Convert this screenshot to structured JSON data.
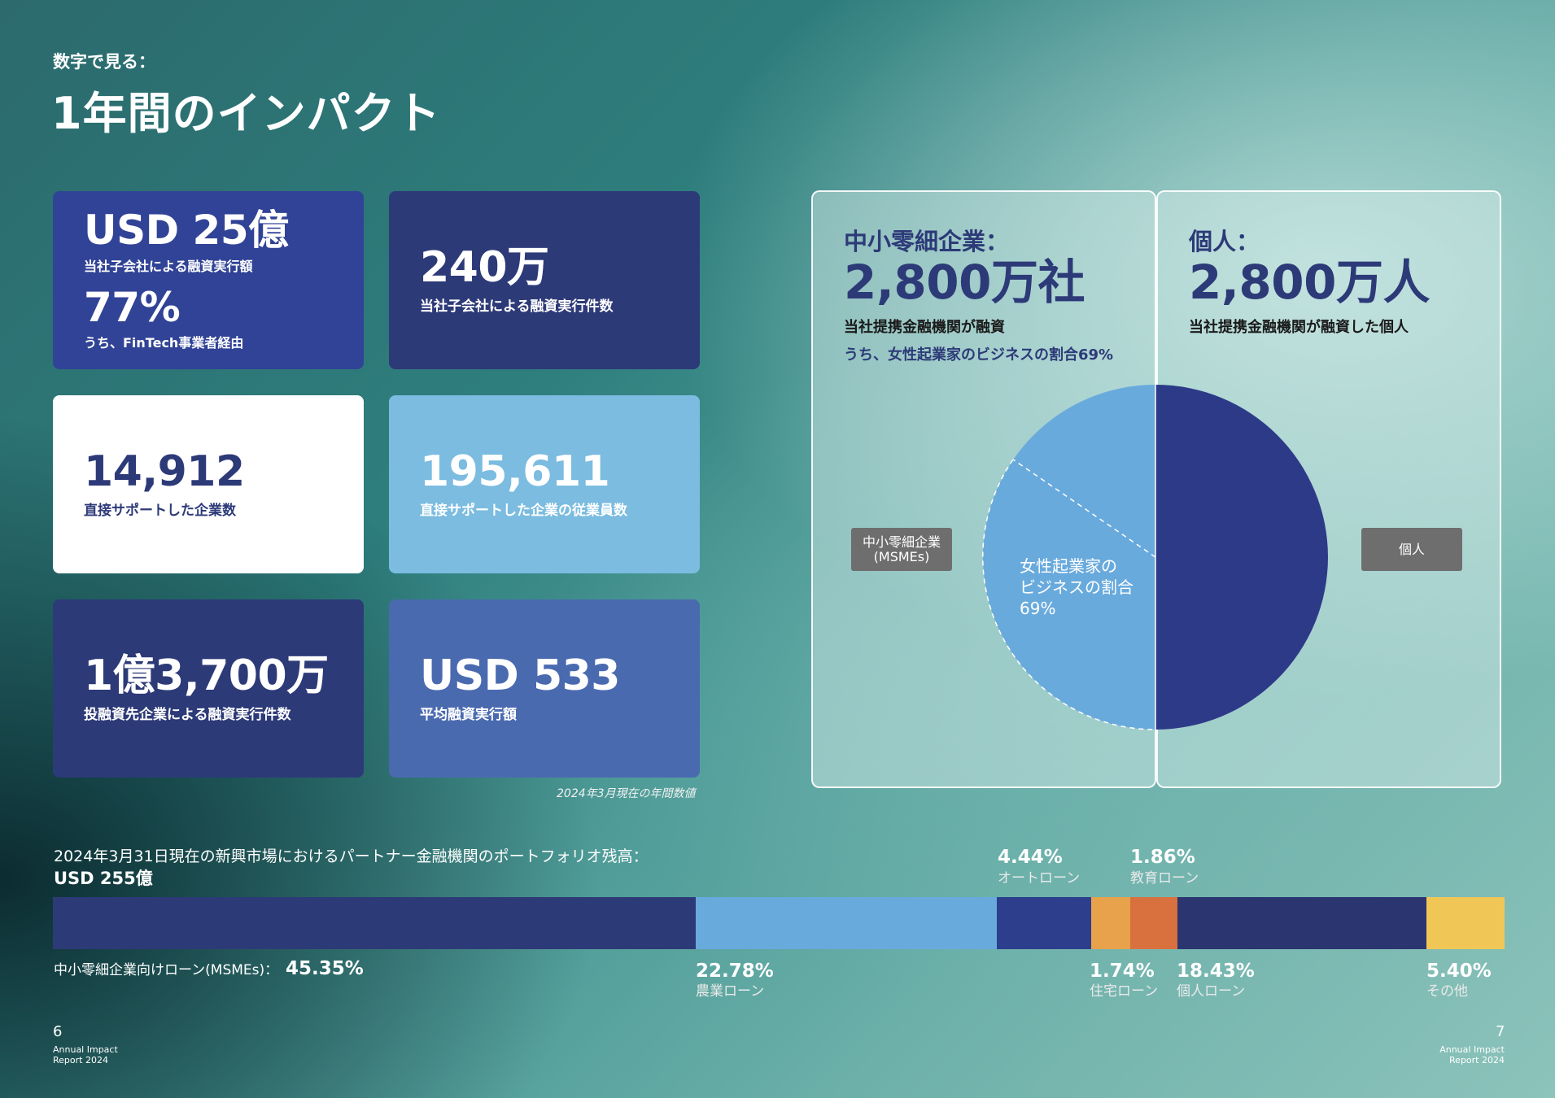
{
  "header": {
    "eyebrow": "数字で見る：",
    "title": "1年間のインパクト"
  },
  "stats": [
    {
      "value": "USD 25億",
      "label": "当社子会社による融資実行額",
      "value2": "77%",
      "label2": "うち、FinTech事業者経由"
    },
    {
      "value": "240万",
      "label": "当社子会社による融資実行件数"
    },
    {
      "value": "14,912",
      "label": "直接サポートした企業数"
    },
    {
      "value": "195,611",
      "label": "直接サポートした企業の従業員数"
    },
    {
      "value": "1億3,700万",
      "label": "投融資先企業による融資実行件数"
    },
    {
      "value": "USD 533",
      "label": "平均融資実行額"
    }
  ],
  "note": "2024年3月現在の年間数値",
  "msme_panel": {
    "heading": "中小零細企業：",
    "value": "2,800万社",
    "label": "当社提携金融機関が融資",
    "sub": "うち、女性起業家のビジネスの割合69%"
  },
  "individual_panel": {
    "heading": "個人：",
    "value": "2,800万人",
    "label": "当社提携金融機関が融資した個人"
  },
  "pie": {
    "tag_left": "中小零細企業\n(MSMEs)",
    "tag_left_l1": "中小零細企業",
    "tag_left_l2": "(MSMEs)",
    "tag_right": "個人",
    "inner_l1": "女性起業家の",
    "inner_l2": "ビジネスの割合",
    "inner_l3": "69%",
    "colors": {
      "msme": "#69aadd",
      "individual": "#2d3a88"
    }
  },
  "portfolio": {
    "title": "2024年3月31日現在の新興市場におけるパートナー金融機関のポートフォリオ残高：",
    "total": "USD 255億",
    "segments": [
      {
        "label": "中小零細企業向けローン(MSMEs)：",
        "pct": "45.35%",
        "value": 45.35,
        "color": "#2d3a78"
      },
      {
        "label": "農業ローン",
        "pct": "22.78%",
        "value": 22.78,
        "color": "#69aadd"
      },
      {
        "label": "オートローン",
        "pct": "4.44%",
        "value": 4.44,
        "color": "#2c3e8c"
      },
      {
        "label": "住宅ローン",
        "pct": "1.74%",
        "value": 1.74,
        "color": "#e7a24b"
      },
      {
        "label": "教育ローン",
        "pct": "1.86%",
        "value": 1.86,
        "color": "#d9713f"
      },
      {
        "label": "個人ローン",
        "pct": "18.43%",
        "value": 18.43,
        "color": "#2b3570"
      },
      {
        "label": "その他",
        "pct": "5.40%",
        "value": 5.4,
        "color": "#f0c757"
      }
    ]
  },
  "footer": {
    "left_page": "6",
    "right_page": "7",
    "report_l1": "Annual Impact",
    "report_l2": "Report 2024"
  }
}
